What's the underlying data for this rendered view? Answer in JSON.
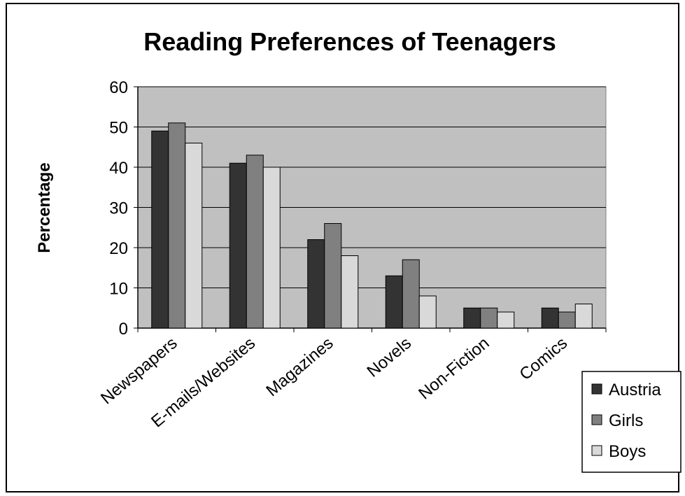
{
  "chart_data": {
    "type": "bar",
    "title": "Reading Preferences of Teenagers",
    "xlabel": "",
    "ylabel": "Percentage",
    "ylim": [
      0,
      60
    ],
    "yticks": [
      0,
      10,
      20,
      30,
      40,
      50,
      60
    ],
    "grid": true,
    "legend_position": "bottom-right",
    "categories": [
      "Newspapers",
      "E-mails/Websites",
      "Magazines",
      "Novels",
      "Non-Fiction",
      "Comics"
    ],
    "series": [
      {
        "name": "Austria",
        "color": "#333333",
        "values": [
          49,
          41,
          22,
          13,
          5,
          5
        ]
      },
      {
        "name": "Girls",
        "color": "#808080",
        "values": [
          51,
          43,
          26,
          17,
          5,
          4
        ]
      },
      {
        "name": "Boys",
        "color": "#d9d9d9",
        "values": [
          46,
          40,
          18,
          8,
          4,
          6
        ]
      }
    ],
    "plot_background": "#c0c0c0"
  }
}
